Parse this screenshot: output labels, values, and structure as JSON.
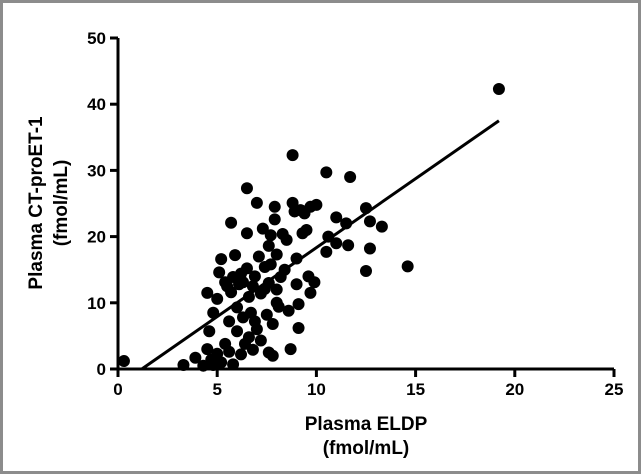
{
  "chart_data": {
    "type": "scatter",
    "title": "",
    "xlabel": [
      "Plasma ELDP",
      "(fmol/mL)"
    ],
    "ylabel": [
      "Plasma CT-proET-1",
      "(fmol/mL)"
    ],
    "xlim": [
      0,
      25
    ],
    "ylim": [
      0,
      50
    ],
    "x_ticks": [
      0,
      5,
      10,
      15,
      20,
      25
    ],
    "y_ticks": [
      0,
      10,
      20,
      30,
      40,
      50
    ],
    "grid": false,
    "regression_line": {
      "x": [
        1.2,
        19.2
      ],
      "y": [
        0.0,
        37.5
      ]
    },
    "points": [
      [
        0.3,
        1.2
      ],
      [
        19.2,
        42.3
      ],
      [
        14.6,
        15.5
      ],
      [
        12.5,
        24.3
      ],
      [
        11.7,
        29.0
      ],
      [
        10.5,
        29.7
      ],
      [
        8.8,
        32.3
      ],
      [
        6.5,
        27.3
      ],
      [
        3.3,
        0.6
      ],
      [
        3.9,
        1.7
      ],
      [
        4.3,
        0.5
      ],
      [
        4.5,
        3.0
      ],
      [
        4.7,
        1.4
      ],
      [
        4.8,
        0.6
      ],
      [
        5.0,
        2.3
      ],
      [
        5.2,
        1.0
      ],
      [
        5.4,
        3.8
      ],
      [
        5.6,
        2.6
      ],
      [
        5.8,
        0.7
      ],
      [
        6.2,
        2.2
      ],
      [
        4.5,
        11.5
      ],
      [
        4.8,
        8.5
      ],
      [
        4.6,
        5.7
      ],
      [
        5.0,
        10.6
      ],
      [
        5.1,
        14.6
      ],
      [
        5.2,
        16.6
      ],
      [
        5.4,
        13.1
      ],
      [
        5.5,
        12.5
      ],
      [
        5.6,
        7.2
      ],
      [
        5.7,
        22.1
      ],
      [
        5.7,
        11.6
      ],
      [
        5.8,
        13.9
      ],
      [
        5.9,
        17.2
      ],
      [
        6.0,
        9.3
      ],
      [
        6.0,
        5.7
      ],
      [
        6.1,
        12.8
      ],
      [
        6.2,
        14.4
      ],
      [
        6.3,
        7.8
      ],
      [
        6.3,
        13.1
      ],
      [
        6.4,
        3.8
      ],
      [
        6.5,
        20.5
      ],
      [
        6.5,
        15.2
      ],
      [
        6.6,
        10.9
      ],
      [
        6.6,
        4.8
      ],
      [
        6.7,
        8.5
      ],
      [
        6.8,
        12.5
      ],
      [
        6.8,
        2.9
      ],
      [
        6.9,
        14.0
      ],
      [
        7.0,
        25.1
      ],
      [
        7.0,
        6.0
      ],
      [
        7.1,
        17.0
      ],
      [
        7.2,
        11.4
      ],
      [
        7.2,
        4.3
      ],
      [
        7.3,
        21.2
      ],
      [
        7.4,
        15.4
      ],
      [
        7.4,
        12.1
      ],
      [
        7.5,
        8.2
      ],
      [
        7.6,
        18.6
      ],
      [
        7.6,
        13.0
      ],
      [
        7.6,
        2.5
      ],
      [
        7.7,
        20.2
      ],
      [
        7.7,
        15.8
      ],
      [
        7.8,
        6.8
      ],
      [
        7.8,
        2.0
      ],
      [
        7.9,
        24.5
      ],
      [
        7.9,
        22.6
      ],
      [
        8.0,
        17.3
      ],
      [
        8.0,
        12.0
      ],
      [
        8.1,
        9.4
      ],
      [
        8.2,
        13.9
      ],
      [
        8.3,
        20.4
      ],
      [
        8.4,
        15.0
      ],
      [
        8.5,
        19.5
      ],
      [
        8.6,
        8.8
      ],
      [
        8.7,
        3.0
      ],
      [
        8.8,
        25.1
      ],
      [
        8.9,
        23.8
      ],
      [
        9.0,
        16.7
      ],
      [
        9.0,
        12.8
      ],
      [
        9.1,
        9.8
      ],
      [
        9.1,
        6.2
      ],
      [
        9.2,
        24.0
      ],
      [
        9.3,
        20.5
      ],
      [
        9.4,
        23.5
      ],
      [
        9.5,
        21.0
      ],
      [
        9.6,
        14.0
      ],
      [
        9.7,
        11.5
      ],
      [
        9.7,
        24.5
      ],
      [
        9.9,
        13.1
      ],
      [
        10.0,
        24.8
      ],
      [
        10.5,
        17.7
      ],
      [
        10.6,
        20.0
      ],
      [
        11.0,
        22.9
      ],
      [
        11.0,
        19.0
      ],
      [
        11.5,
        22.0
      ],
      [
        11.6,
        18.7
      ],
      [
        12.5,
        14.8
      ],
      [
        12.7,
        18.2
      ],
      [
        13.3,
        21.5
      ],
      [
        12.7,
        22.3
      ],
      [
        8.0,
        10.0
      ],
      [
        6.9,
        7.2
      ]
    ]
  }
}
